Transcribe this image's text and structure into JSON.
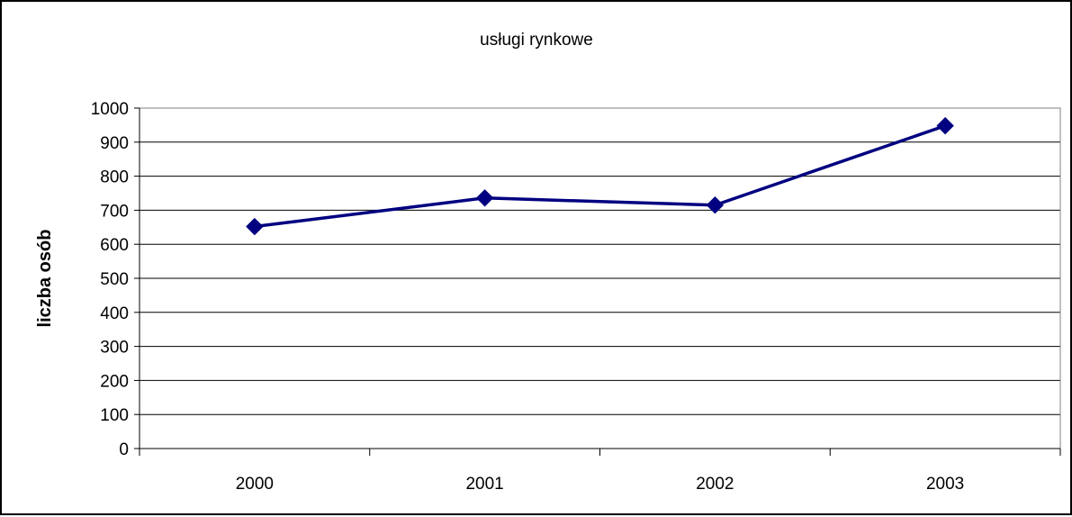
{
  "chart_data": {
    "type": "line",
    "title": "usługi rynkowe",
    "xlabel": "",
    "ylabel": "liczba osób",
    "categories": [
      "2000",
      "2001",
      "2002",
      "2003"
    ],
    "series": [
      {
        "values": [
          652,
          736,
          715,
          948
        ],
        "color": "#000080",
        "marker": "diamond"
      }
    ],
    "ylim": [
      0,
      1000
    ],
    "y_ticks": [
      "0",
      "100",
      "200",
      "300",
      "400",
      "500",
      "600",
      "700",
      "800",
      "900",
      "1000"
    ],
    "grid": true,
    "legend": "none"
  }
}
